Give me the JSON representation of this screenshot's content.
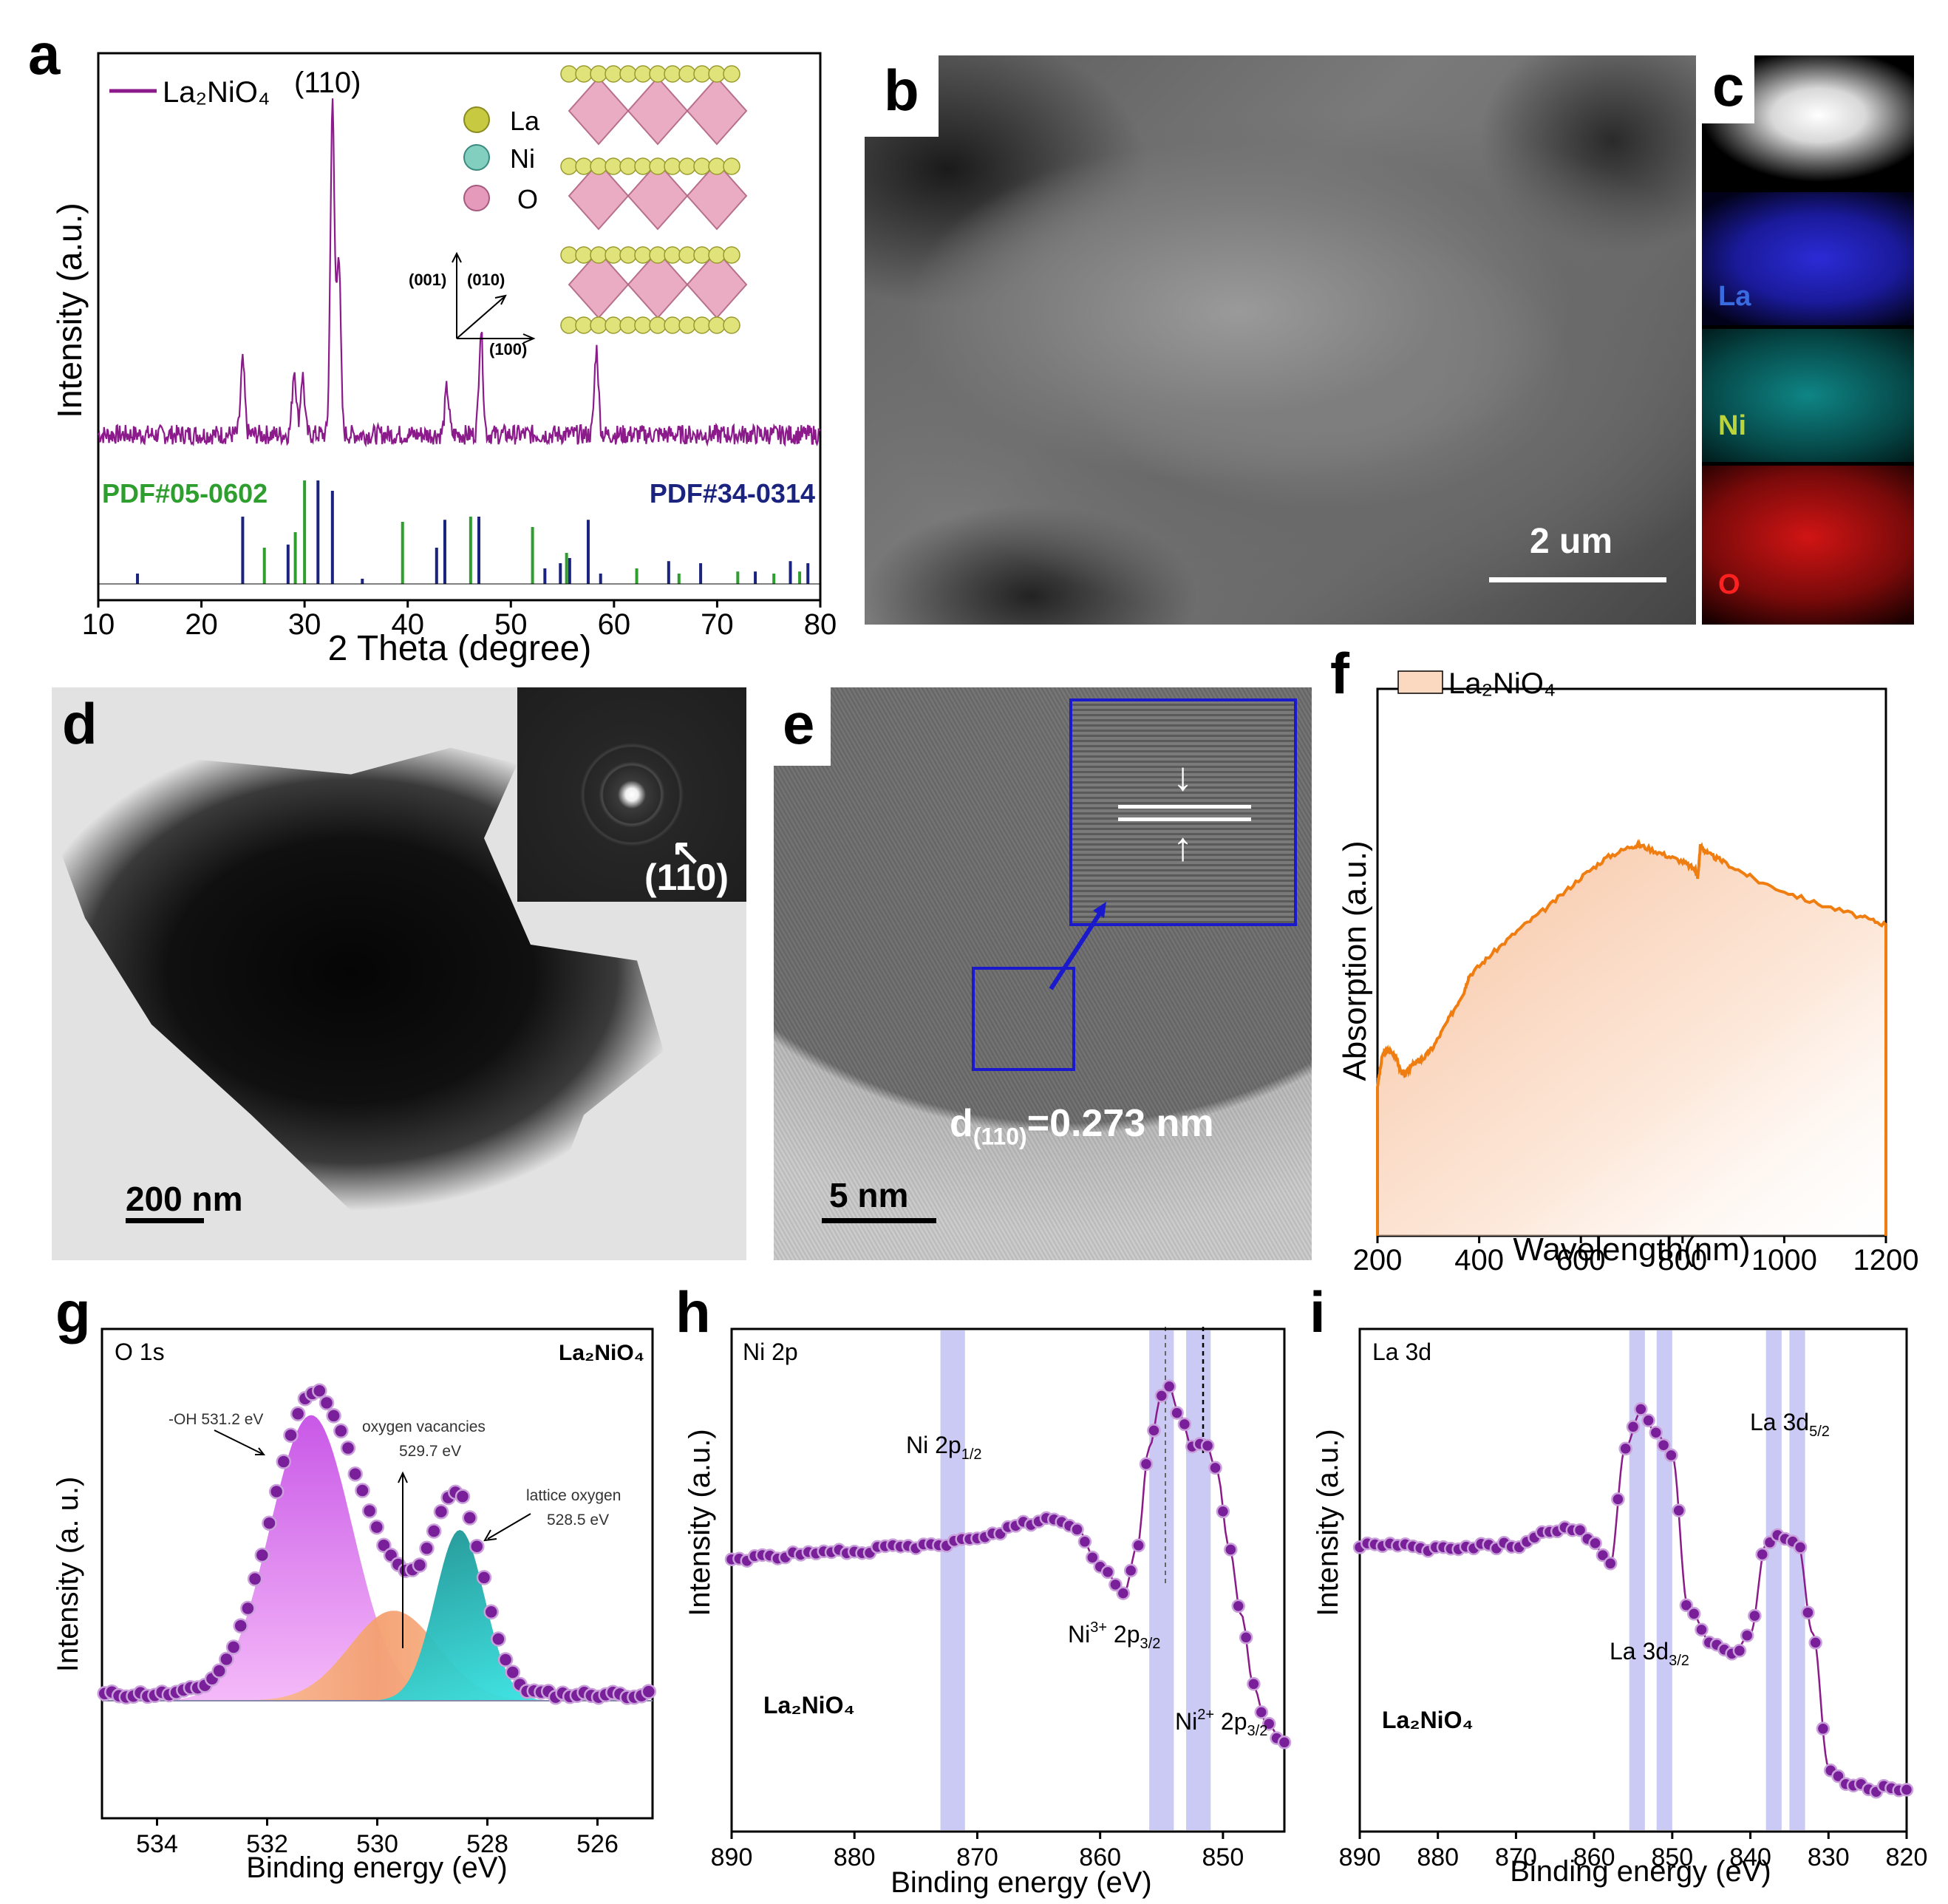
{
  "panels": {
    "a": "a",
    "b": "b",
    "c": "c",
    "d": "d",
    "e": "e",
    "f": "f",
    "g": "g",
    "h": "h",
    "i": "i"
  },
  "chart_data": [
    {
      "id": "a",
      "type": "line",
      "xlabel": "2 Theta (degree)",
      "ylabel": "Intensity (a.u.)",
      "xlim": [
        10,
        80
      ],
      "xticks": [
        10,
        20,
        30,
        40,
        50,
        60,
        70,
        80
      ],
      "legend": {
        "text": "La₂NiO₄",
        "position": "top-left"
      },
      "annotations": {
        "peak_110": "(110)",
        "atom_la": "La",
        "atom_ni": "Ni",
        "atom_o": "O",
        "axis_001": "(001)",
        "axis_010": "(010)",
        "axis_100": "(100)"
      },
      "series": [
        {
          "name": "La₂NiO₄",
          "color": "#8b1a8b",
          "peaks": [
            {
              "x": 24.0,
              "h": 0.22
            },
            {
              "x": 29.0,
              "h": 0.2
            },
            {
              "x": 29.8,
              "h": 0.18
            },
            {
              "x": 32.7,
              "h": 1.0
            },
            {
              "x": 33.3,
              "h": 0.55
            },
            {
              "x": 43.8,
              "h": 0.14
            },
            {
              "x": 47.1,
              "h": 0.32
            },
            {
              "x": 58.3,
              "h": 0.26
            }
          ]
        }
      ],
      "reference_patterns": [
        {
          "name": "PDF#05-0602",
          "color": "#2e9e2e",
          "lines": [
            [
              26.1,
              0.35
            ],
            [
              29.1,
              0.5
            ],
            [
              30.0,
              1.0
            ],
            [
              39.5,
              0.6
            ],
            [
              46.1,
              0.65
            ],
            [
              52.1,
              0.55
            ],
            [
              55.4,
              0.3
            ],
            [
              62.2,
              0.15
            ],
            [
              66.3,
              0.1
            ],
            [
              72.0,
              0.12
            ],
            [
              75.5,
              0.1
            ],
            [
              78.0,
              0.12
            ]
          ]
        },
        {
          "name": "PDF#34-0314",
          "color": "#1a237e",
          "lines": [
            [
              13.8,
              0.1
            ],
            [
              24.0,
              0.65
            ],
            [
              28.4,
              0.38
            ],
            [
              31.3,
              1.0
            ],
            [
              32.7,
              0.9
            ],
            [
              35.6,
              0.05
            ],
            [
              42.8,
              0.35
            ],
            [
              43.6,
              0.62
            ],
            [
              46.9,
              0.65
            ],
            [
              53.3,
              0.15
            ],
            [
              54.8,
              0.2
            ],
            [
              55.7,
              0.25
            ],
            [
              57.5,
              0.62
            ],
            [
              58.7,
              0.1
            ],
            [
              65.3,
              0.22
            ],
            [
              68.4,
              0.2
            ],
            [
              73.7,
              0.12
            ],
            [
              77.1,
              0.22
            ],
            [
              78.8,
              0.2
            ]
          ]
        }
      ]
    },
    {
      "id": "f",
      "type": "area",
      "xlabel": "Wavelength(nm)",
      "ylabel": "Absorption (a.u.)",
      "xlim": [
        200,
        1200
      ],
      "xticks": [
        200,
        400,
        600,
        800,
        1000,
        1200
      ],
      "legend": {
        "text": "La₂NiO₄",
        "position": "top-left"
      },
      "series": [
        {
          "name": "La₂NiO₄",
          "color": "#f07d10",
          "x": [
            200,
            210,
            220,
            235,
            245,
            255,
            265,
            275,
            290,
            310,
            340,
            370,
            380,
            420,
            480,
            540,
            600,
            650,
            700,
            720,
            760,
            800,
            825,
            830,
            835,
            850,
            880,
            950,
            1050,
            1150,
            1200
          ],
          "y": [
            0.38,
            0.46,
            0.47,
            0.46,
            0.42,
            0.41,
            0.43,
            0.44,
            0.45,
            0.48,
            0.55,
            0.62,
            0.66,
            0.71,
            0.78,
            0.84,
            0.91,
            0.96,
            0.99,
            0.99,
            0.97,
            0.95,
            0.93,
            0.91,
            0.99,
            0.97,
            0.95,
            0.9,
            0.85,
            0.81,
            0.79
          ]
        }
      ]
    },
    {
      "id": "g",
      "type": "scatter",
      "title": "O 1s",
      "sample": "La₂NiO₄",
      "xlabel": "Binding energy (eV)",
      "ylabel": "Intensity (a. u.)",
      "xlim": [
        535,
        525
      ],
      "xticks": [
        534,
        532,
        530,
        528,
        526
      ],
      "annotations": {
        "oh": "-OH 531.2 eV",
        "vac1": "oxygen vacancies",
        "vac2": "529.7 eV",
        "lat1": "lattice oxygen",
        "lat2": "528.5 eV"
      },
      "components": [
        {
          "name": "-OH",
          "center": 531.2,
          "height": 0.92,
          "sigma": 0.75,
          "color": "#cc55ee"
        },
        {
          "name": "oxygen vacancies",
          "center": 529.7,
          "height": 0.29,
          "sigma": 0.8,
          "color": "#f5a070"
        },
        {
          "name": "lattice oxygen",
          "center": 528.5,
          "height": 0.55,
          "sigma": 0.45,
          "color": "#1aaca0"
        }
      ]
    },
    {
      "id": "h",
      "type": "scatter",
      "title": "Ni 2p",
      "sample": "La₂NiO₄",
      "xlabel": "Binding energy (eV)",
      "ylabel": "Intensity (a.u.)",
      "xlim": [
        890,
        845
      ],
      "xticks": [
        890,
        880,
        870,
        860,
        850
      ],
      "annotations": {
        "ni2p12": "Ni 2p",
        "ni2p12_sub": "1/2",
        "ni3": "Ni",
        "ni3_sup": "3+",
        "ni3_rest": " 2p",
        "ni3_sub": "3/2",
        "ni2": "Ni",
        "ni2_sup": "2+",
        "ni2_rest": " 2p",
        "ni2_sub": "3/2"
      },
      "bands": [
        [
          873,
          871
        ],
        [
          856,
          854
        ],
        [
          853,
          851
        ]
      ],
      "x": [
        890,
        885,
        880,
        875,
        870,
        866,
        864,
        862,
        860,
        858,
        857,
        856,
        855,
        854.5,
        853.5,
        852.5,
        851.5,
        850.5,
        849.5,
        848.5,
        847.5,
        846.5,
        845
      ],
      "y": [
        0.52,
        0.53,
        0.54,
        0.55,
        0.57,
        0.61,
        0.62,
        0.6,
        0.5,
        0.44,
        0.55,
        0.8,
        0.93,
        0.96,
        0.88,
        0.8,
        0.82,
        0.74,
        0.55,
        0.38,
        0.2,
        0.11,
        0.06
      ]
    },
    {
      "id": "i",
      "type": "scatter",
      "title": "La 3d",
      "sample": "La₂NiO₄",
      "xlabel": "Binding energy (eV)",
      "ylabel": "Intensity (a.u.)",
      "xlim": [
        890,
        820
      ],
      "xticks": [
        890,
        880,
        870,
        860,
        850,
        840,
        830,
        820
      ],
      "annotations": {
        "la52": "La 3d",
        "la52_sub": "5/2",
        "la32": "La 3d",
        "la32_sub": "3/2"
      },
      "bands": [
        [
          855.5,
          853.5
        ],
        [
          852,
          850
        ],
        [
          838,
          836
        ],
        [
          835,
          833
        ]
      ],
      "x": [
        890,
        880,
        870,
        865,
        862,
        860,
        858,
        856,
        854,
        852,
        850,
        848,
        845,
        842,
        840,
        838,
        836,
        834,
        832,
        830,
        828,
        824,
        820
      ],
      "y": [
        0.6,
        0.59,
        0.6,
        0.63,
        0.64,
        0.6,
        0.55,
        0.82,
        0.9,
        0.85,
        0.8,
        0.46,
        0.38,
        0.36,
        0.4,
        0.6,
        0.62,
        0.61,
        0.4,
        0.1,
        0.06,
        0.05,
        0.05
      ]
    }
  ],
  "micrographs": {
    "b_scale": "2 um",
    "c_labels": [
      "La",
      "Ni",
      "O"
    ],
    "c_colors": [
      "#2b2bd6",
      "#0fa5a5",
      "#d11414"
    ],
    "d_scale": "200 nm",
    "d_inset_label": "(110)",
    "e_scale": "5 nm",
    "e_spacing_d": "d",
    "e_spacing_sub": "(110)",
    "e_spacing_value": "=0.273 nm"
  }
}
